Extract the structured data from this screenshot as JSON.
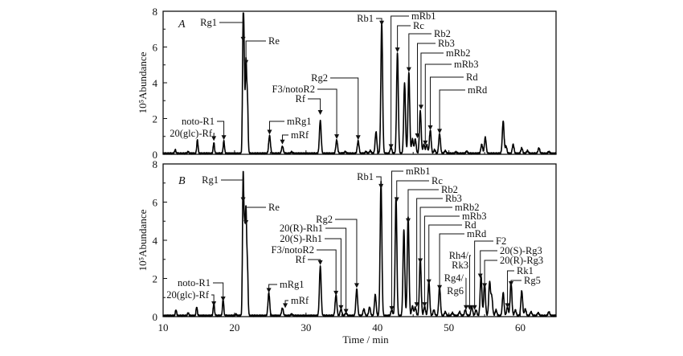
{
  "chart_data": [
    {
      "panel": "A",
      "type": "line",
      "xlabel": "Time / min",
      "ylabel": "10⁵Abundance",
      "xlim": [
        10,
        65
      ],
      "ylim": [
        0,
        8
      ],
      "xticks": [
        "10",
        "20",
        "30",
        "40",
        "50",
        "60"
      ],
      "yticks": [
        "0",
        "2",
        "4",
        "6",
        "8"
      ],
      "peaks": [
        [
          11.7,
          0.2
        ],
        [
          13.5,
          0.1
        ],
        [
          14.8,
          0.75
        ],
        [
          17.1,
          0.6
        ],
        [
          18.5,
          0.7
        ],
        [
          21.2,
          6.9
        ],
        [
          21.35,
          4.2
        ],
        [
          21.6,
          5.0
        ],
        [
          21.8,
          3.0
        ],
        [
          24.9,
          1.0
        ],
        [
          26.7,
          0.4
        ],
        [
          28.0,
          0.08
        ],
        [
          32.0,
          1.85
        ],
        [
          34.3,
          0.75
        ],
        [
          35.5,
          0.1
        ],
        [
          37.3,
          0.7
        ],
        [
          38.4,
          0.1
        ],
        [
          39.0,
          0.15
        ],
        [
          39.8,
          1.2
        ],
        [
          40.6,
          7.3
        ],
        [
          41.9,
          0.35
        ],
        [
          42.8,
          5.65
        ],
        [
          43.8,
          3.95
        ],
        [
          44.4,
          4.5
        ],
        [
          44.9,
          0.8
        ],
        [
          45.3,
          0.8
        ],
        [
          46.0,
          2.4
        ],
        [
          46.5,
          0.5
        ],
        [
          46.9,
          0.5
        ],
        [
          47.4,
          1.3
        ],
        [
          48.0,
          0.2
        ],
        [
          48.7,
          1.1
        ],
        [
          49.5,
          0.15
        ],
        [
          51.0,
          0.08
        ],
        [
          52.5,
          0.12
        ],
        [
          54.6,
          0.5
        ],
        [
          55.1,
          0.9
        ],
        [
          57.6,
          1.8
        ],
        [
          58.0,
          0.4
        ],
        [
          59.0,
          0.5
        ],
        [
          60.2,
          0.3
        ],
        [
          61.0,
          0.15
        ],
        [
          62.6,
          0.3
        ],
        [
          64.0,
          0.1
        ]
      ],
      "annotations": [
        {
          "label": "Rg1",
          "t": 21.2,
          "y": 6.3
        },
        {
          "label": "Re",
          "t": 21.6,
          "y": 5.0
        },
        {
          "label": "noto-R1",
          "t": 18.5,
          "y": 0.8
        },
        {
          "label": "20(glc)-Rf",
          "t": 17.1,
          "y": 0.75
        },
        {
          "label": "mRg1",
          "t": 24.9,
          "y": 1.1
        },
        {
          "label": "mRf",
          "t": 26.7,
          "y": 0.55
        },
        {
          "label": "Rf",
          "t": 32.0,
          "y": 2.2
        },
        {
          "label": "F3/notoR2",
          "t": 34.3,
          "y": 0.85
        },
        {
          "label": "Rg2",
          "t": 37.3,
          "y": 0.8
        },
        {
          "label": "Rb1",
          "t": 40.6,
          "y": 7.2
        },
        {
          "label": "mRb1",
          "t": 41.9,
          "y": 0.3
        },
        {
          "label": "Rc",
          "t": 42.8,
          "y": 5.7
        },
        {
          "label": "Rb2",
          "t": 44.4,
          "y": 4.6
        },
        {
          "label": "Rb3",
          "t": 45.6,
          "y": 0.9
        },
        {
          "label": "mRb2",
          "t": 46.1,
          "y": 2.5
        },
        {
          "label": "mRb3",
          "t": 46.7,
          "y": 0.5
        },
        {
          "label": "Rd",
          "t": 47.4,
          "y": 1.35
        },
        {
          "label": "mRd",
          "t": 48.7,
          "y": 1.15
        }
      ]
    },
    {
      "panel": "B",
      "type": "line",
      "xlabel": "Time / min",
      "ylabel": "10⁵Abundance",
      "xlim": [
        10,
        65
      ],
      "ylim": [
        0,
        8
      ],
      "xticks": [
        "10",
        "20",
        "30",
        "40",
        "50",
        "60"
      ],
      "yticks": [
        "0",
        "2",
        "4",
        "6",
        "8"
      ],
      "peaks": [
        [
          11.8,
          0.3
        ],
        [
          13.5,
          0.15
        ],
        [
          14.7,
          0.45
        ],
        [
          17.1,
          0.65
        ],
        [
          18.4,
          0.85
        ],
        [
          20.2,
          0.08
        ],
        [
          21.2,
          7.2
        ],
        [
          21.4,
          4.0
        ],
        [
          21.6,
          5.2
        ],
        [
          21.8,
          2.5
        ],
        [
          24.8,
          1.2
        ],
        [
          26.7,
          0.4
        ],
        [
          28.0,
          0.08
        ],
        [
          32.0,
          2.6
        ],
        [
          34.2,
          1.1
        ],
        [
          34.9,
          0.35
        ],
        [
          35.6,
          0.15
        ],
        [
          37.1,
          1.4
        ],
        [
          38.1,
          0.35
        ],
        [
          38.9,
          0.45
        ],
        [
          39.7,
          1.1
        ],
        [
          40.5,
          7.0
        ],
        [
          42.0,
          0.3
        ],
        [
          42.6,
          6.2
        ],
        [
          43.7,
          4.5
        ],
        [
          44.3,
          5.2
        ],
        [
          44.9,
          0.5
        ],
        [
          45.3,
          0.45
        ],
        [
          46.0,
          3.0
        ],
        [
          46.6,
          0.5
        ],
        [
          47.2,
          1.8
        ],
        [
          47.9,
          0.3
        ],
        [
          48.7,
          1.5
        ],
        [
          49.5,
          0.2
        ],
        [
          50.5,
          0.15
        ],
        [
          51.5,
          0.2
        ],
        [
          52.3,
          0.3
        ],
        [
          53.2,
          0.5
        ],
        [
          53.8,
          0.3
        ],
        [
          54.5,
          2.1
        ],
        [
          55.0,
          1.7
        ],
        [
          55.7,
          1.75
        ],
        [
          56.0,
          1.0
        ],
        [
          56.6,
          0.3
        ],
        [
          57.6,
          1.2
        ],
        [
          58.2,
          0.45
        ],
        [
          58.7,
          1.75
        ],
        [
          59.3,
          0.3
        ],
        [
          60.2,
          1.3
        ],
        [
          60.7,
          0.35
        ],
        [
          61.5,
          0.2
        ],
        [
          62.5,
          0.15
        ],
        [
          64.0,
          0.2
        ]
      ],
      "annotations": [
        {
          "label": "Rg1",
          "t": 21.2,
          "y": 6.0
        },
        {
          "label": "Re",
          "t": 21.6,
          "y": 4.8
        },
        {
          "label": "noto-R1",
          "t": 18.4,
          "y": 0.8
        },
        {
          "label": "20(glc)-Rf",
          "t": 17.1,
          "y": 0.55
        },
        {
          "label": "mRg1",
          "t": 24.8,
          "y": 1.25
        },
        {
          "label": "mRf",
          "t": 27.1,
          "y": 0.45
        },
        {
          "label": "Rf",
          "t": 32.0,
          "y": 2.7
        },
        {
          "label": "F3/notoR2",
          "t": 34.2,
          "y": 1.1
        },
        {
          "label": "20(S)-Rh1",
          "t": 34.9,
          "y": 0.35
        },
        {
          "label": "20(R)-Rh1",
          "t": 35.6,
          "y": 0.15
        },
        {
          "label": "Rg2",
          "t": 37.1,
          "y": 1.5
        },
        {
          "label": "Rb1",
          "t": 40.5,
          "y": 6.7
        },
        {
          "label": "mRb1",
          "t": 42.0,
          "y": 0.3
        },
        {
          "label": "Rc",
          "t": 42.7,
          "y": 6.0
        },
        {
          "label": "Rb2",
          "t": 44.3,
          "y": 4.9
        },
        {
          "label": "Rb3",
          "t": 45.5,
          "y": 0.5
        },
        {
          "label": "mRb2",
          "t": 46.0,
          "y": 2.8
        },
        {
          "label": "mRb3",
          "t": 46.6,
          "y": 0.5
        },
        {
          "label": "Rd",
          "t": 47.2,
          "y": 1.7
        },
        {
          "label": "mRd",
          "t": 48.7,
          "y": 1.4
        },
        {
          "label": "F2",
          "t": 53.6,
          "y": 0.35
        },
        {
          "label": "Rh4/",
          "t": 52.9,
          "y": 0.35
        },
        {
          "label": "Rk3",
          "t": null,
          "y": null
        },
        {
          "label": "Rg4/",
          "t": 52.4,
          "y": 0.35
        },
        {
          "label": "Rg6",
          "t": null,
          "y": null
        },
        {
          "label": "20(S)-Rg3",
          "t": 54.4,
          "y": 2.0
        },
        {
          "label": "20(R)-Rg3",
          "t": 55.0,
          "y": 1.5
        },
        {
          "label": "Rk1",
          "t": 58.2,
          "y": 0.45
        },
        {
          "label": "Rg5",
          "t": 58.7,
          "y": 1.6
        }
      ]
    }
  ]
}
